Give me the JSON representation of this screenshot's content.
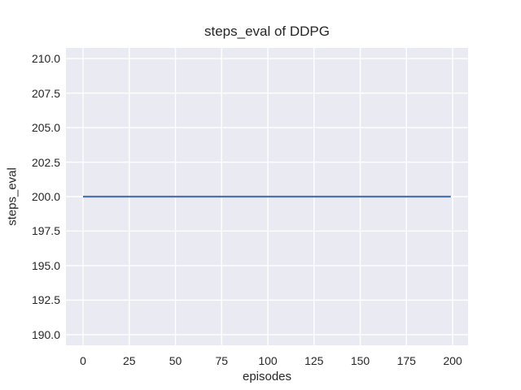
{
  "figure": {
    "background": "#ffffff",
    "text_color": "#262626"
  },
  "chart_data": {
    "type": "line",
    "title": "steps_eval of DDPG",
    "xlabel": "episodes",
    "ylabel": "steps_eval",
    "xlim": [
      -9.25,
      208.35
    ],
    "ylim": [
      189.23,
      210.77
    ],
    "xticks": [
      0,
      25,
      50,
      75,
      100,
      125,
      150,
      175,
      200
    ],
    "xtick_labels": [
      "0",
      "25",
      "50",
      "75",
      "100",
      "125",
      "150",
      "175",
      "200"
    ],
    "yticks": [
      190.0,
      192.5,
      195.0,
      197.5,
      200.0,
      202.5,
      205.0,
      207.5,
      210.0
    ],
    "ytick_labels": [
      "190.0",
      "192.5",
      "195.0",
      "197.5",
      "200.0",
      "202.5",
      "205.0",
      "207.5",
      "210.0"
    ],
    "grid": true,
    "legend": "none",
    "plot_background": "#eaeaf2",
    "grid_color": "#ffffff",
    "series": [
      {
        "name": "DDPG",
        "color": "#4c72b0",
        "line_width": 2.2,
        "x": [
          0,
          199
        ],
        "y": [
          200,
          200
        ]
      }
    ]
  }
}
